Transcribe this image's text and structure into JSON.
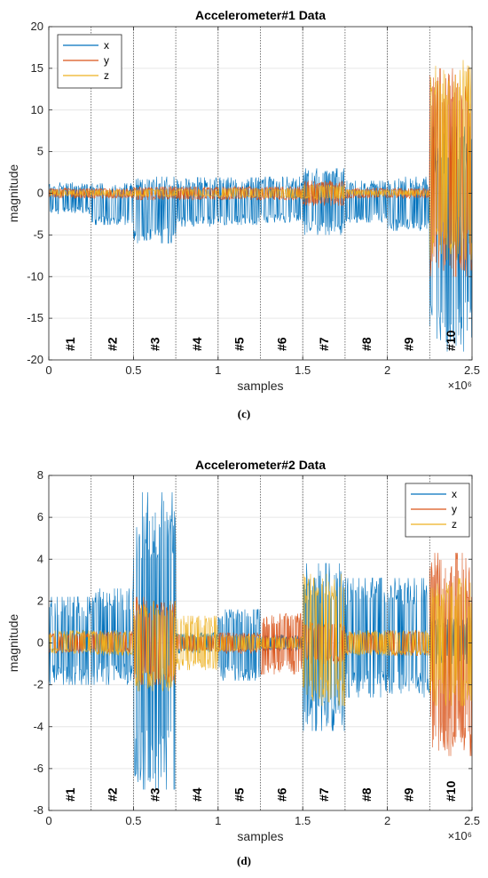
{
  "colors": {
    "x": "#0072BD",
    "y": "#D95319",
    "z": "#EDB120",
    "grid": "#e6e6e6",
    "divider": "#555555"
  },
  "chart_data": [
    {
      "type": "line",
      "title": "Accelerometer#1 Data",
      "xlabel": "samples",
      "ylabel": "magnitude",
      "caption": "(c)",
      "x_exponent": "×10⁶",
      "xlim": [
        0,
        2.5
      ],
      "ylim": [
        -20,
        20
      ],
      "xticks": [
        0,
        0.5,
        1,
        1.5,
        2,
        2.5
      ],
      "xtick_labels": [
        "0",
        "0.5",
        "1",
        "1.5",
        "2",
        "2.5"
      ],
      "yticks": [
        -20,
        -15,
        -10,
        -5,
        0,
        5,
        10,
        15,
        20
      ],
      "ytick_labels": [
        "-20",
        "-15",
        "-10",
        "-5",
        "0",
        "5",
        "10",
        "15",
        "20"
      ],
      "grid": true,
      "legend_position": "top-left",
      "segment_boundaries": [
        0.25,
        0.5,
        0.75,
        1.0,
        1.25,
        1.5,
        1.75,
        2.0,
        2.25
      ],
      "segment_labels": [
        "#1",
        "#2",
        "#3",
        "#4",
        "#5",
        "#6",
        "#7",
        "#8",
        "#9",
        "#10"
      ],
      "series": [
        {
          "name": "x",
          "segment_ranges": [
            [
              -2.5,
              1.3
            ],
            [
              -3.8,
              1.2
            ],
            [
              -6.0,
              2.0
            ],
            [
              -4.0,
              1.9
            ],
            [
              -3.8,
              1.9
            ],
            [
              -3.5,
              2.0
            ],
            [
              -5.0,
              3.0
            ],
            [
              -3.5,
              1.5
            ],
            [
              -4.5,
              2.0
            ],
            [
              -19.0,
              8.0
            ]
          ]
        },
        {
          "name": "y",
          "segment_ranges": [
            [
              -0.6,
              0.6
            ],
            [
              -0.6,
              0.6
            ],
            [
              -0.8,
              0.8
            ],
            [
              -0.8,
              0.8
            ],
            [
              -0.8,
              0.8
            ],
            [
              -0.8,
              0.8
            ],
            [
              -1.5,
              1.5
            ],
            [
              -0.6,
              0.6
            ],
            [
              -0.6,
              0.6
            ],
            [
              -10.0,
              15.0
            ]
          ]
        },
        {
          "name": "z",
          "segment_ranges": [
            [
              -0.3,
              0.4
            ],
            [
              -0.3,
              0.4
            ],
            [
              -0.4,
              0.5
            ],
            [
              -0.4,
              0.5
            ],
            [
              -0.5,
              0.6
            ],
            [
              -0.6,
              0.6
            ],
            [
              -0.8,
              1.0
            ],
            [
              -0.3,
              0.4
            ],
            [
              -0.3,
              0.4
            ],
            [
              -8.0,
              16.0
            ]
          ]
        }
      ]
    },
    {
      "type": "line",
      "title": "Accelerometer#2 Data",
      "xlabel": "samples",
      "ylabel": "magnitude",
      "caption": "(d)",
      "x_exponent": "×10⁶",
      "xlim": [
        0,
        2.5
      ],
      "ylim": [
        -8,
        8
      ],
      "xticks": [
        0,
        0.5,
        1,
        1.5,
        2,
        2.5
      ],
      "xtick_labels": [
        "0",
        "0.5",
        "1",
        "1.5",
        "2",
        "2.5"
      ],
      "yticks": [
        -8,
        -6,
        -4,
        -2,
        0,
        2,
        4,
        6,
        8
      ],
      "ytick_labels": [
        "-8",
        "-6",
        "-4",
        "-2",
        "0",
        "2",
        "4",
        "6",
        "8"
      ],
      "grid": true,
      "legend_position": "top-right",
      "segment_boundaries": [
        0.25,
        0.5,
        0.75,
        1.0,
        1.25,
        1.5,
        1.75,
        2.0,
        2.25
      ],
      "segment_labels": [
        "#1",
        "#2",
        "#3",
        "#4",
        "#5",
        "#6",
        "#7",
        "#8",
        "#9",
        "#10"
      ],
      "series": [
        {
          "name": "x",
          "segment_ranges": [
            [
              -2.0,
              2.2
            ],
            [
              -2.0,
              2.6
            ],
            [
              -7.0,
              7.2
            ],
            [
              -0.5,
              0.5
            ],
            [
              -1.8,
              1.6
            ],
            [
              -0.4,
              0.4
            ],
            [
              -4.2,
              3.8
            ],
            [
              -2.6,
              3.1
            ],
            [
              -2.6,
              3.1
            ],
            [
              -1.0,
              1.2
            ]
          ]
        },
        {
          "name": "y",
          "segment_ranges": [
            [
              -0.5,
              0.5
            ],
            [
              -0.5,
              0.6
            ],
            [
              -2.0,
              2.2
            ],
            [
              -0.4,
              0.4
            ],
            [
              -0.5,
              0.5
            ],
            [
              -1.5,
              1.4
            ],
            [
              -1.0,
              1.0
            ],
            [
              -0.5,
              0.5
            ],
            [
              -0.6,
              0.6
            ],
            [
              -5.4,
              4.3
            ]
          ]
        },
        {
          "name": "z",
          "segment_ranges": [
            [
              -0.5,
              0.6
            ],
            [
              -0.6,
              0.6
            ],
            [
              -2.3,
              2.0
            ],
            [
              -1.3,
              1.3
            ],
            [
              -0.4,
              0.4
            ],
            [
              -0.3,
              0.3
            ],
            [
              -3.0,
              3.3
            ],
            [
              -0.6,
              0.6
            ],
            [
              -0.6,
              0.6
            ],
            [
              -3.0,
              3.1
            ]
          ]
        }
      ]
    }
  ]
}
